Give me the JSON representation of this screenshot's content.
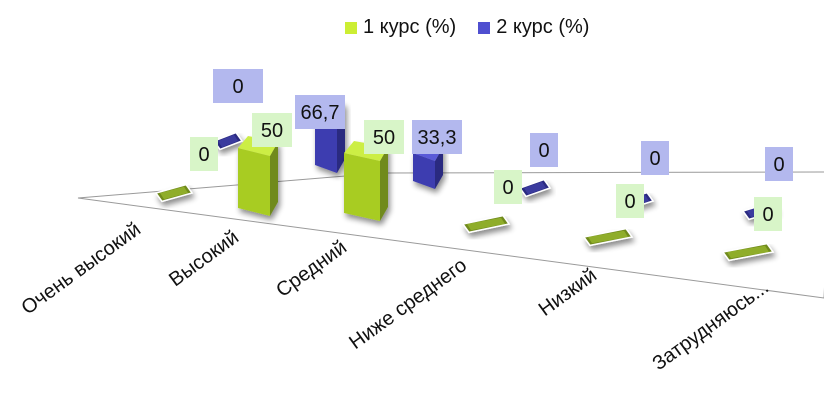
{
  "chart_data": {
    "type": "bar",
    "categories": [
      "Очень высокий",
      "Высокий",
      "Средний",
      "Ниже среднего",
      "Низкий",
      "Затрудняюсь..."
    ],
    "series": [
      {
        "name": "1 курс (%)",
        "values": [
          0,
          50,
          50,
          0,
          0,
          0
        ]
      },
      {
        "name": "2 курс (%)",
        "values": [
          0,
          66.7,
          33.3,
          0,
          0,
          0
        ]
      }
    ],
    "data_labels": {
      "1 курс (%)": [
        "0",
        "50",
        "50",
        "0",
        "0",
        "0"
      ],
      "2 курс (%)": [
        "0",
        "66,7",
        "33,3",
        "0",
        "0",
        "0"
      ]
    },
    "legend_position": "top",
    "three_d": true,
    "colors": {
      "series1_top": "#ccee44",
      "series1_side": "#6f8a1c",
      "series2_top": "#7070e0",
      "series2_side": "#2a2a80",
      "label_bg1": "#d8f5c8",
      "label_bg2": "#b3b8ee"
    }
  }
}
